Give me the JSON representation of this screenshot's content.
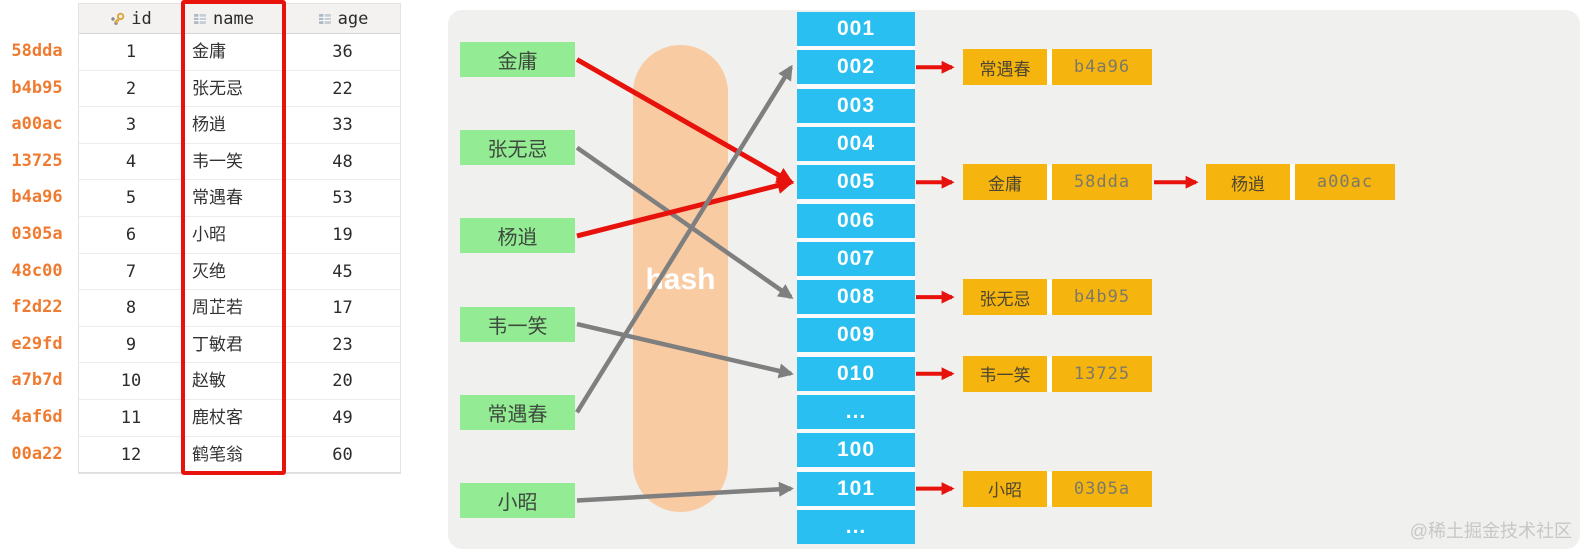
{
  "left_table": {
    "row_hashes": [
      "58dda",
      "b4b95",
      "a00ac",
      "13725",
      "b4a96",
      "0305a",
      "48c00",
      "f2d22",
      "e29fd",
      "a7b7d",
      "4af6d",
      "00a22"
    ],
    "columns": [
      {
        "name": "id",
        "icon": "primary-key-icon"
      },
      {
        "name": "name",
        "icon": "column-icon"
      },
      {
        "name": "age",
        "icon": "column-icon"
      }
    ],
    "rows": [
      {
        "id": "1",
        "name": "金庸",
        "age": "36"
      },
      {
        "id": "2",
        "name": "张无忌",
        "age": "22"
      },
      {
        "id": "3",
        "name": "杨逍",
        "age": "33"
      },
      {
        "id": "4",
        "name": "韦一笑",
        "age": "48"
      },
      {
        "id": "5",
        "name": "常遇春",
        "age": "53"
      },
      {
        "id": "6",
        "name": "小昭",
        "age": "19"
      },
      {
        "id": "7",
        "name": "灭绝",
        "age": "45"
      },
      {
        "id": "8",
        "name": "周芷若",
        "age": "17"
      },
      {
        "id": "9",
        "name": "丁敏君",
        "age": "23"
      },
      {
        "id": "10",
        "name": "赵敏",
        "age": "20"
      },
      {
        "id": "11",
        "name": "鹿杖客",
        "age": "49"
      },
      {
        "id": "12",
        "name": "鹤笔翁",
        "age": "60"
      }
    ],
    "highlighted_column": "name"
  },
  "diagram": {
    "hash_label": "hash",
    "name_nodes": [
      {
        "label": "金庸",
        "bucket": "005",
        "arrow": "red"
      },
      {
        "label": "张无忌",
        "bucket": "008",
        "arrow": "gray"
      },
      {
        "label": "杨逍",
        "bucket": "005",
        "arrow": "red"
      },
      {
        "label": "韦一笑",
        "bucket": "010",
        "arrow": "gray"
      },
      {
        "label": "常遇春",
        "bucket": "002",
        "arrow": "gray"
      },
      {
        "label": "小昭",
        "bucket": "101",
        "arrow": "gray"
      }
    ],
    "buckets": [
      "001",
      "002",
      "003",
      "004",
      "005",
      "006",
      "007",
      "008",
      "009",
      "010",
      "...",
      "100",
      "101",
      "..."
    ],
    "bucket_entries": [
      {
        "bucket": "002",
        "chain": [
          {
            "name": "常遇春",
            "hash": "b4a96"
          }
        ]
      },
      {
        "bucket": "005",
        "chain": [
          {
            "name": "金庸",
            "hash": "58dda"
          },
          {
            "name": "杨逍",
            "hash": "a00ac"
          }
        ]
      },
      {
        "bucket": "008",
        "chain": [
          {
            "name": "张无忌",
            "hash": "b4b95"
          }
        ]
      },
      {
        "bucket": "010",
        "chain": [
          {
            "name": "韦一笑",
            "hash": "13725"
          }
        ]
      },
      {
        "bucket": "101",
        "chain": [
          {
            "name": "小昭",
            "hash": "0305a"
          }
        ]
      }
    ]
  },
  "watermark": "@稀土掘金技术社区",
  "colors": {
    "red": "#e8120d",
    "green": "#93ec93",
    "blue": "#29bff0",
    "gold": "#f6b40e",
    "peach": "#f8cba3",
    "hash_orange": "#ef7b31",
    "gray_arrow": "#7f7f7f"
  }
}
